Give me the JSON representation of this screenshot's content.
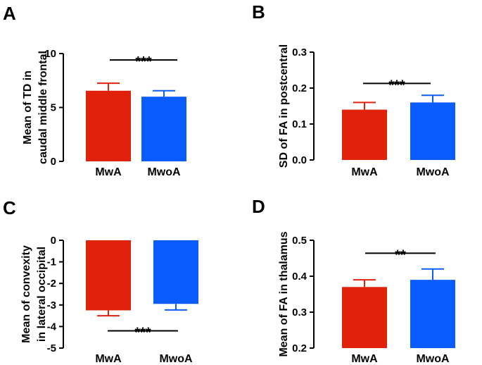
{
  "chart_data": [
    {
      "panel": "A",
      "type": "bar",
      "ylabel_lines": [
        "Mean of TD in",
        "caudal middle frontal"
      ],
      "categories": [
        "MwA",
        "MwoA"
      ],
      "values": [
        6.55,
        6.0
      ],
      "errors": [
        0.7,
        0.55
      ],
      "colors": [
        "#e0220c",
        "#0a5cff"
      ],
      "ylim": [
        0,
        10
      ],
      "yticks": [
        0,
        5,
        10
      ],
      "ytick_labels": [
        "0",
        "5",
        "10"
      ],
      "significance": "***",
      "significance_y": 9.4
    },
    {
      "panel": "B",
      "type": "bar",
      "ylabel_lines": [
        "SD of FA in postcentral"
      ],
      "categories": [
        "MwA",
        "MwoA"
      ],
      "values": [
        0.14,
        0.16
      ],
      "errors": [
        0.02,
        0.02
      ],
      "colors": [
        "#e0220c",
        "#0a5cff"
      ],
      "ylim": [
        0,
        0.3
      ],
      "yticks": [
        0,
        0.1,
        0.2,
        0.3
      ],
      "ytick_labels": [
        "0.0",
        "0.1",
        "0.2",
        "0.3"
      ],
      "significance": "***",
      "significance_y": 0.213
    },
    {
      "panel": "C",
      "type": "bar",
      "ylabel_lines": [
        "Mean of convexity",
        "in lateral occipital"
      ],
      "categories": [
        "MwA",
        "MwoA"
      ],
      "values": [
        -3.25,
        -2.95
      ],
      "errors": [
        0.25,
        0.28
      ],
      "colors": [
        "#e0220c",
        "#0a5cff"
      ],
      "ylim": [
        -5,
        0
      ],
      "yticks": [
        0,
        -1,
        -2,
        -3,
        -4,
        -5
      ],
      "ytick_labels": [
        "0",
        "-1",
        "-2",
        "-3",
        "-4",
        "-5"
      ],
      "significance": "***",
      "significance_y": -4.2
    },
    {
      "panel": "D",
      "type": "bar",
      "ylabel_lines": [
        "Mean of FA in thalamus"
      ],
      "categories": [
        "MwA",
        "MwoA"
      ],
      "values": [
        0.37,
        0.39
      ],
      "errors": [
        0.02,
        0.03
      ],
      "colors": [
        "#e0220c",
        "#0a5cff"
      ],
      "ylim": [
        0.2,
        0.5
      ],
      "yticks": [
        0.2,
        0.3,
        0.4,
        0.5
      ],
      "ytick_labels": [
        "0.2",
        "0.3",
        "0.4",
        "0.5"
      ],
      "significance": "**",
      "significance_y": 0.464
    }
  ]
}
